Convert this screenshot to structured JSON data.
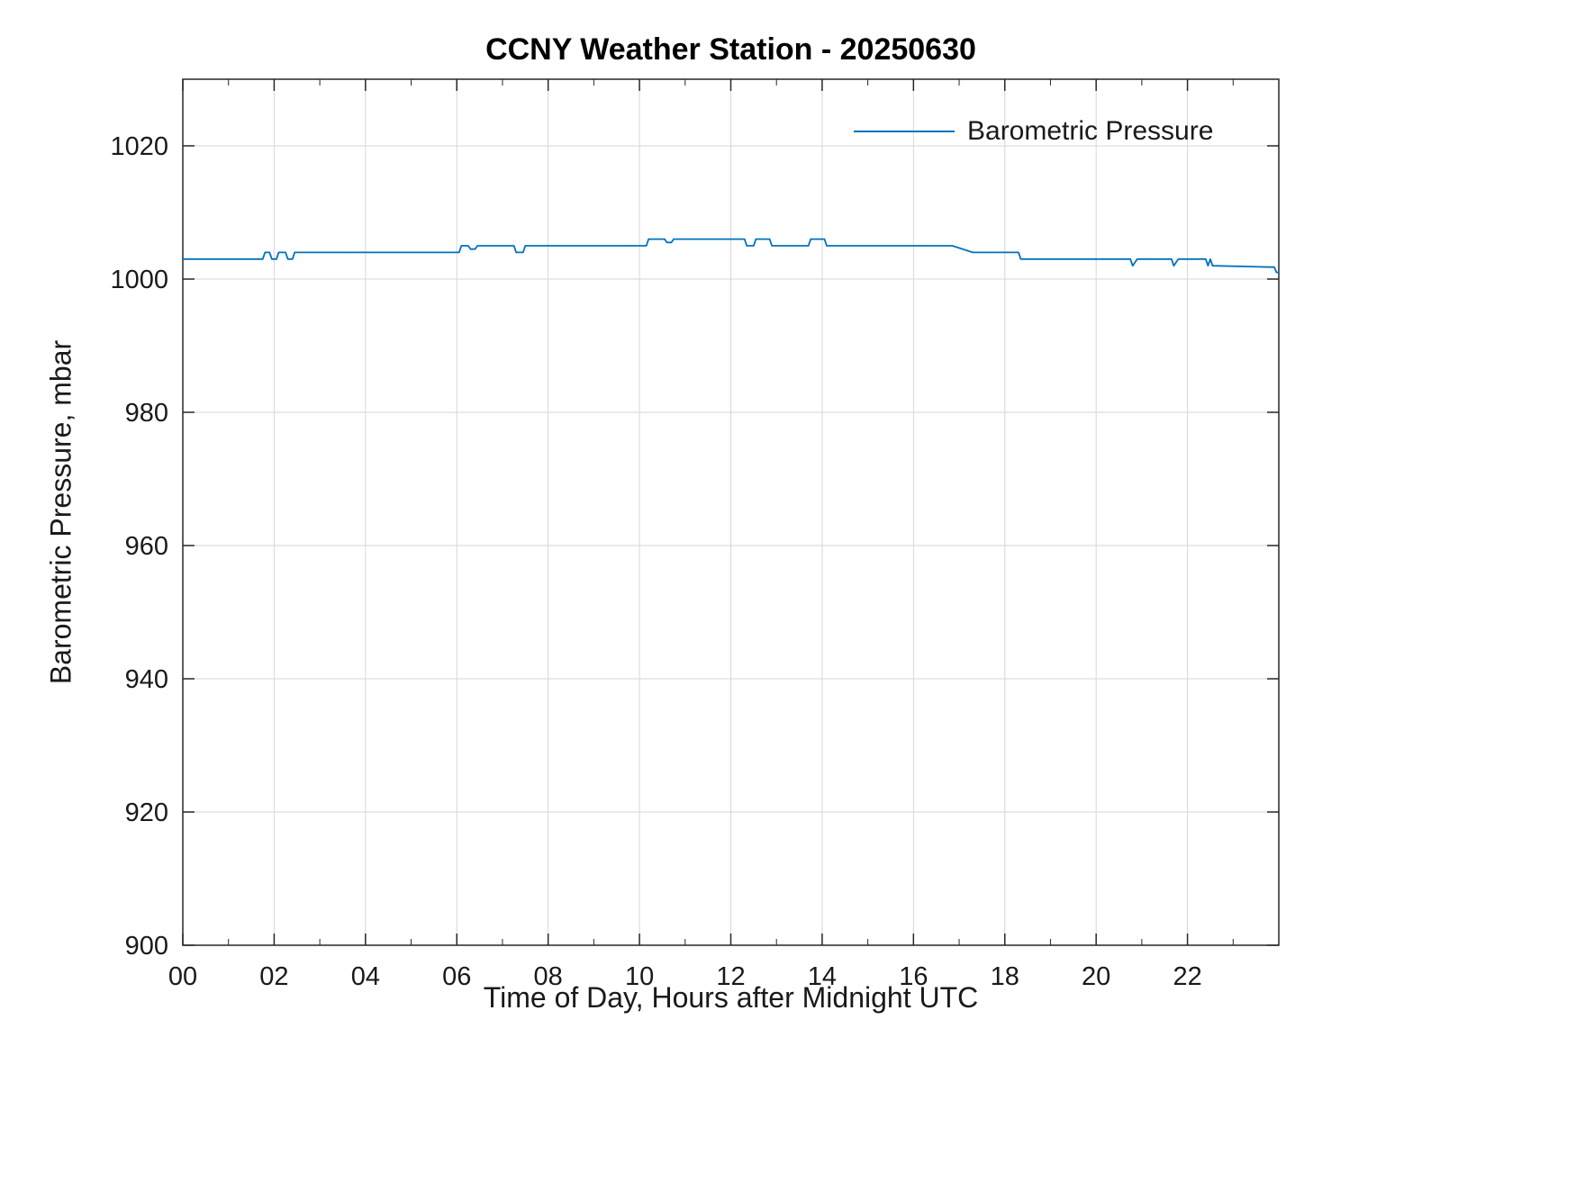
{
  "title": "CCNY Weather Station - 20250630",
  "chart_data": {
    "type": "line",
    "title": "CCNY Weather Station - 20250630",
    "xlabel": "Time of Day, Hours after Midnight UTC",
    "ylabel": "Barometric Pressure, mbar",
    "xlim": [
      0,
      24
    ],
    "ylim": [
      900,
      1030
    ],
    "xticks": [
      0,
      2,
      4,
      6,
      8,
      10,
      12,
      14,
      16,
      18,
      20,
      22
    ],
    "xtick_labels": [
      "00",
      "02",
      "04",
      "06",
      "08",
      "10",
      "12",
      "14",
      "16",
      "18",
      "20",
      "22"
    ],
    "yticks": [
      900,
      920,
      940,
      960,
      980,
      1000,
      1020
    ],
    "ytick_labels": [
      "900",
      "920",
      "940",
      "960",
      "980",
      "1000",
      "1020"
    ],
    "grid": true,
    "legend": {
      "position": "top-right",
      "entries": [
        "Barometric Pressure"
      ]
    },
    "line_color": "#0072BD",
    "series": [
      {
        "name": "Barometric Pressure",
        "points": [
          [
            0.0,
            1003
          ],
          [
            1.75,
            1003
          ],
          [
            1.8,
            1004
          ],
          [
            1.9,
            1004
          ],
          [
            1.95,
            1003
          ],
          [
            2.05,
            1003
          ],
          [
            2.1,
            1004
          ],
          [
            2.25,
            1004
          ],
          [
            2.3,
            1003
          ],
          [
            2.4,
            1003
          ],
          [
            2.45,
            1004
          ],
          [
            6.05,
            1004
          ],
          [
            6.1,
            1005
          ],
          [
            6.25,
            1005
          ],
          [
            6.3,
            1004.5
          ],
          [
            6.4,
            1004.5
          ],
          [
            6.45,
            1005
          ],
          [
            7.25,
            1005
          ],
          [
            7.3,
            1004
          ],
          [
            7.45,
            1004
          ],
          [
            7.5,
            1005
          ],
          [
            10.15,
            1005
          ],
          [
            10.2,
            1006
          ],
          [
            10.55,
            1006
          ],
          [
            10.6,
            1005.5
          ],
          [
            10.7,
            1005.5
          ],
          [
            10.75,
            1006
          ],
          [
            12.3,
            1006
          ],
          [
            12.35,
            1005
          ],
          [
            12.5,
            1005
          ],
          [
            12.55,
            1006
          ],
          [
            12.85,
            1006
          ],
          [
            12.9,
            1005
          ],
          [
            13.7,
            1005
          ],
          [
            13.75,
            1006
          ],
          [
            14.05,
            1006
          ],
          [
            14.1,
            1005
          ],
          [
            16.85,
            1005
          ],
          [
            17.3,
            1004
          ],
          [
            18.3,
            1004
          ],
          [
            18.35,
            1003
          ],
          [
            20.75,
            1003
          ],
          [
            20.8,
            1002
          ],
          [
            20.9,
            1003
          ],
          [
            21.65,
            1003
          ],
          [
            21.7,
            1002
          ],
          [
            21.8,
            1003
          ],
          [
            22.4,
            1003
          ],
          [
            22.45,
            1002
          ],
          [
            22.5,
            1003
          ],
          [
            22.55,
            1002
          ],
          [
            23.8,
            1001.8
          ],
          [
            23.9,
            1001.8
          ],
          [
            23.95,
            1001
          ],
          [
            24.0,
            1001
          ]
        ]
      }
    ]
  }
}
